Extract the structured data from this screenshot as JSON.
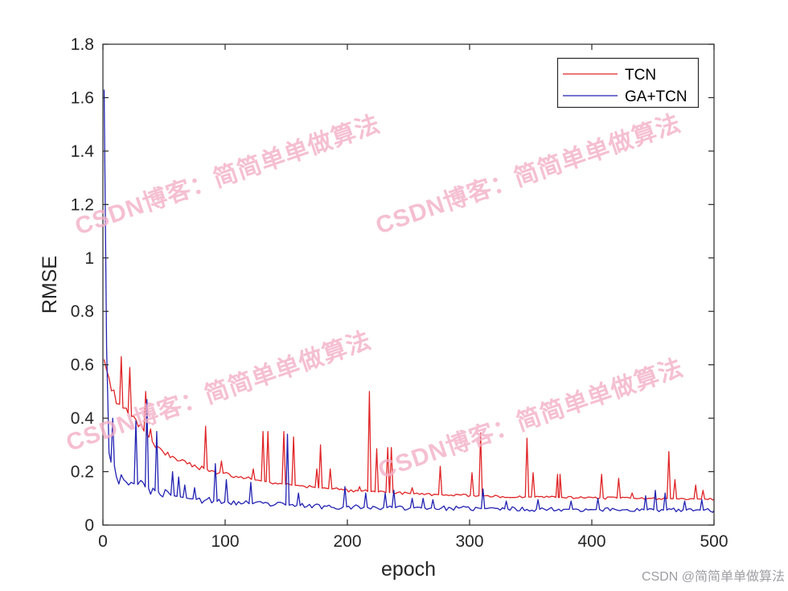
{
  "figure": {
    "background": "#ffffff"
  },
  "watermark": {
    "text": "CSDN博客：简简单单做算法",
    "color": "#f3b0c8"
  },
  "credit": {
    "text": "CSDN @简简单单做算法",
    "color": "#9e9ea4"
  },
  "chart_data": {
    "type": "line",
    "title": "",
    "xlabel": "epoch",
    "ylabel": "RMSE",
    "xlim": [
      0,
      500
    ],
    "ylim": [
      0,
      1.8
    ],
    "x_ticks": [
      0,
      100,
      200,
      300,
      400,
      500
    ],
    "x_tick_labels": [
      "0",
      "100",
      "200",
      "300",
      "400",
      "500"
    ],
    "y_ticks": [
      0,
      0.2,
      0.4,
      0.6,
      0.8,
      1,
      1.2,
      1.4,
      1.6,
      1.8
    ],
    "y_tick_labels": [
      "0",
      "0.2",
      "0.4",
      "0.6",
      "0.8",
      "1",
      "1.2",
      "1.4",
      "1.6",
      "1.8"
    ],
    "grid": false,
    "axis_color": "#262626",
    "legend": {
      "position": "top-right",
      "entries": [
        "TCN",
        "GA+TCN"
      ]
    },
    "series": [
      {
        "name": "TCN",
        "color": "#e02426",
        "noise_amp": 0.045,
        "noise_seed": 9,
        "baseline": [
          [
            1,
            0.62
          ],
          [
            3,
            0.58
          ],
          [
            5,
            0.55
          ],
          [
            8,
            0.5
          ],
          [
            12,
            0.46
          ],
          [
            18,
            0.43
          ],
          [
            25,
            0.4
          ],
          [
            30,
            0.37
          ],
          [
            35,
            0.345
          ],
          [
            40,
            0.315
          ],
          [
            45,
            0.29
          ],
          [
            50,
            0.27
          ],
          [
            60,
            0.245
          ],
          [
            70,
            0.228
          ],
          [
            80,
            0.215
          ],
          [
            90,
            0.202
          ],
          [
            100,
            0.192
          ],
          [
            110,
            0.182
          ],
          [
            120,
            0.172
          ],
          [
            130,
            0.165
          ],
          [
            140,
            0.158
          ],
          [
            150,
            0.152
          ],
          [
            160,
            0.147
          ],
          [
            170,
            0.142
          ],
          [
            180,
            0.138
          ],
          [
            190,
            0.134
          ],
          [
            200,
            0.13
          ],
          [
            220,
            0.125
          ],
          [
            240,
            0.12
          ],
          [
            260,
            0.116
          ],
          [
            280,
            0.113
          ],
          [
            300,
            0.111
          ],
          [
            320,
            0.108
          ],
          [
            340,
            0.106
          ],
          [
            360,
            0.104
          ],
          [
            380,
            0.103
          ],
          [
            400,
            0.102
          ],
          [
            420,
            0.101
          ],
          [
            440,
            0.1
          ],
          [
            460,
            0.099
          ],
          [
            480,
            0.098
          ],
          [
            500,
            0.097
          ]
        ],
        "spikes": [
          [
            15,
            0.63
          ],
          [
            22,
            0.59
          ],
          [
            35,
            0.5
          ],
          [
            39,
            0.36
          ],
          [
            84,
            0.37
          ],
          [
            97,
            0.24
          ],
          [
            123,
            0.21
          ],
          [
            131,
            0.35
          ],
          [
            135,
            0.35
          ],
          [
            148,
            0.35
          ],
          [
            156,
            0.33
          ],
          [
            175,
            0.21
          ],
          [
            178,
            0.3
          ],
          [
            186,
            0.21
          ],
          [
            195,
            0.135
          ],
          [
            210,
            0.144
          ],
          [
            218,
            0.5
          ],
          [
            224,
            0.286
          ],
          [
            233,
            0.29
          ],
          [
            236,
            0.29
          ],
          [
            253,
            0.14
          ],
          [
            276,
            0.22
          ],
          [
            302,
            0.196
          ],
          [
            309,
            0.345
          ],
          [
            347,
            0.325
          ],
          [
            352,
            0.196
          ],
          [
            372,
            0.19
          ],
          [
            374,
            0.19
          ],
          [
            408,
            0.19
          ],
          [
            422,
            0.175
          ],
          [
            433,
            0.12
          ],
          [
            463,
            0.275
          ],
          [
            468,
            0.17
          ],
          [
            485,
            0.15
          ],
          [
            491,
            0.13
          ]
        ]
      },
      {
        "name": "GA+TCN",
        "color": "#2222b2",
        "noise_amp": 0.14,
        "noise_seed": 23,
        "baseline": [
          [
            1,
            1.63
          ],
          [
            2,
            1.05
          ],
          [
            3,
            0.66
          ],
          [
            4,
            0.42
          ],
          [
            5,
            0.27
          ],
          [
            6,
            0.24
          ],
          [
            8,
            0.225
          ],
          [
            10,
            0.22
          ],
          [
            13,
            0.175
          ],
          [
            16,
            0.185
          ],
          [
            20,
            0.165
          ],
          [
            25,
            0.155
          ],
          [
            30,
            0.15
          ],
          [
            35,
            0.142
          ],
          [
            40,
            0.132
          ],
          [
            45,
            0.125
          ],
          [
            50,
            0.118
          ],
          [
            55,
            0.112
          ],
          [
            60,
            0.108
          ],
          [
            70,
            0.1
          ],
          [
            80,
            0.094
          ],
          [
            90,
            0.09
          ],
          [
            100,
            0.086
          ],
          [
            110,
            0.083
          ],
          [
            120,
            0.08
          ],
          [
            140,
            0.077
          ],
          [
            160,
            0.073
          ],
          [
            180,
            0.07
          ],
          [
            200,
            0.068
          ],
          [
            220,
            0.066
          ],
          [
            240,
            0.065
          ],
          [
            260,
            0.064
          ],
          [
            280,
            0.063
          ],
          [
            300,
            0.062
          ],
          [
            320,
            0.061
          ],
          [
            340,
            0.06
          ],
          [
            360,
            0.059
          ],
          [
            380,
            0.059
          ],
          [
            400,
            0.058
          ],
          [
            420,
            0.058
          ],
          [
            440,
            0.057
          ],
          [
            460,
            0.056
          ],
          [
            480,
            0.056
          ],
          [
            500,
            0.055
          ]
        ],
        "spikes": [
          [
            8,
            0.4
          ],
          [
            27,
            0.39
          ],
          [
            36,
            0.47
          ],
          [
            44,
            0.35
          ],
          [
            57,
            0.2
          ],
          [
            62,
            0.18
          ],
          [
            67,
            0.15
          ],
          [
            75,
            0.14
          ],
          [
            92,
            0.23
          ],
          [
            101,
            0.17
          ],
          [
            121,
            0.16
          ],
          [
            151,
            0.34
          ],
          [
            160,
            0.12
          ],
          [
            198,
            0.144
          ],
          [
            215,
            0.12
          ],
          [
            231,
            0.12
          ],
          [
            238,
            0.13
          ],
          [
            253,
            0.1
          ],
          [
            262,
            0.1
          ],
          [
            270,
            0.095
          ],
          [
            311,
            0.135
          ],
          [
            330,
            0.09
          ],
          [
            356,
            0.095
          ],
          [
            383,
            0.09
          ],
          [
            405,
            0.1
          ],
          [
            444,
            0.11
          ],
          [
            452,
            0.13
          ],
          [
            460,
            0.12
          ],
          [
            476,
            0.09
          ],
          [
            490,
            0.095
          ]
        ]
      }
    ]
  }
}
